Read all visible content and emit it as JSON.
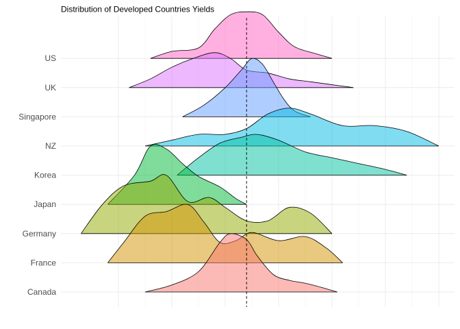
{
  "chart_data": {
    "type": "ridgeline",
    "title": "Distribution of Developed Countries Yields",
    "xlabel": "",
    "ylabel": "",
    "grid": true,
    "legend": "none",
    "reference_line": {
      "style": "dashed",
      "x": 1.4
    },
    "xlim": [
      -1.5,
      5.5
    ],
    "x_gridlines": [
      -1.0,
      0.0,
      1.0,
      2.0,
      3.0,
      4.0,
      5.0
    ],
    "categories": [
      "Canada",
      "France",
      "Germany",
      "Japan",
      "Korea",
      "NZ",
      "Singapore",
      "UK",
      "US"
    ],
    "series": [
      {
        "name": "Canada",
        "color": "#F8766D",
        "x": [
          -0.5,
          0.0,
          0.5,
          0.9,
          1.1,
          1.4,
          1.6,
          1.9,
          2.2,
          2.5,
          2.8,
          3.1
        ],
        "y": [
          0.0,
          0.12,
          0.35,
          0.85,
          1.0,
          0.9,
          0.62,
          0.3,
          0.2,
          0.15,
          0.08,
          0.0
        ]
      },
      {
        "name": "France",
        "color": "#D39200",
        "x": [
          -1.2,
          -0.9,
          -0.5,
          -0.1,
          0.3,
          0.6,
          0.9,
          1.2,
          1.5,
          2.0,
          2.5,
          2.9,
          3.2
        ],
        "y": [
          0.0,
          0.35,
          0.8,
          0.88,
          1.0,
          0.7,
          0.35,
          0.38,
          0.52,
          0.38,
          0.45,
          0.25,
          0.0
        ]
      },
      {
        "name": "Germany",
        "color": "#93AA00",
        "x": [
          -1.7,
          -1.3,
          -0.9,
          -0.4,
          -0.1,
          0.3,
          0.7,
          1.0,
          1.4,
          1.8,
          2.2,
          2.6,
          3.0
        ],
        "y": [
          0.0,
          0.5,
          0.82,
          0.9,
          1.0,
          0.55,
          0.62,
          0.45,
          0.22,
          0.22,
          0.45,
          0.35,
          0.0
        ]
      },
      {
        "name": "Japan",
        "color": "#00BA38",
        "x": [
          -1.2,
          -0.7,
          -0.4,
          -0.1,
          0.2,
          0.5,
          0.9,
          1.2,
          1.4
        ],
        "y": [
          0.0,
          0.5,
          1.0,
          0.95,
          0.7,
          0.48,
          0.3,
          0.1,
          0.0
        ]
      },
      {
        "name": "Korea",
        "color": "#00C19F",
        "x": [
          0.1,
          0.5,
          0.9,
          1.3,
          1.6,
          2.0,
          2.5,
          3.0,
          3.5,
          4.0,
          4.4
        ],
        "y": [
          0.0,
          0.3,
          0.55,
          0.65,
          0.7,
          0.6,
          0.4,
          0.3,
          0.2,
          0.1,
          0.0
        ]
      },
      {
        "name": "NZ",
        "color": "#00B9E3",
        "x": [
          -0.5,
          0.0,
          0.5,
          1.0,
          1.4,
          1.8,
          2.2,
          2.6,
          3.2,
          3.8,
          4.4,
          5.0
        ],
        "y": [
          0.0,
          0.1,
          0.2,
          0.2,
          0.3,
          0.55,
          0.65,
          0.55,
          0.35,
          0.35,
          0.25,
          0.0
        ]
      },
      {
        "name": "Singapore",
        "color": "#619CFF",
        "x": [
          0.2,
          0.6,
          1.0,
          1.3,
          1.5,
          1.7,
          1.9,
          2.1,
          2.3,
          2.6
        ],
        "y": [
          0.0,
          0.2,
          0.5,
          0.8,
          1.0,
          0.9,
          0.6,
          0.3,
          0.1,
          0.0
        ]
      },
      {
        "name": "UK",
        "color": "#DB72FB",
        "x": [
          -0.8,
          -0.4,
          0.0,
          0.4,
          0.8,
          1.1,
          1.4,
          1.8,
          2.2,
          2.6,
          3.0,
          3.4
        ],
        "y": [
          0.0,
          0.15,
          0.35,
          0.5,
          0.6,
          0.5,
          0.3,
          0.25,
          0.15,
          0.1,
          0.05,
          0.0
        ]
      },
      {
        "name": "US",
        "color": "#FF61C3",
        "x": [
          -0.4,
          0.0,
          0.5,
          0.8,
          1.1,
          1.4,
          1.7,
          2.0,
          2.3,
          2.7,
          3.0
        ],
        "y": [
          0.0,
          0.12,
          0.18,
          0.5,
          0.75,
          0.8,
          0.75,
          0.45,
          0.2,
          0.08,
          0.0
        ]
      }
    ]
  }
}
